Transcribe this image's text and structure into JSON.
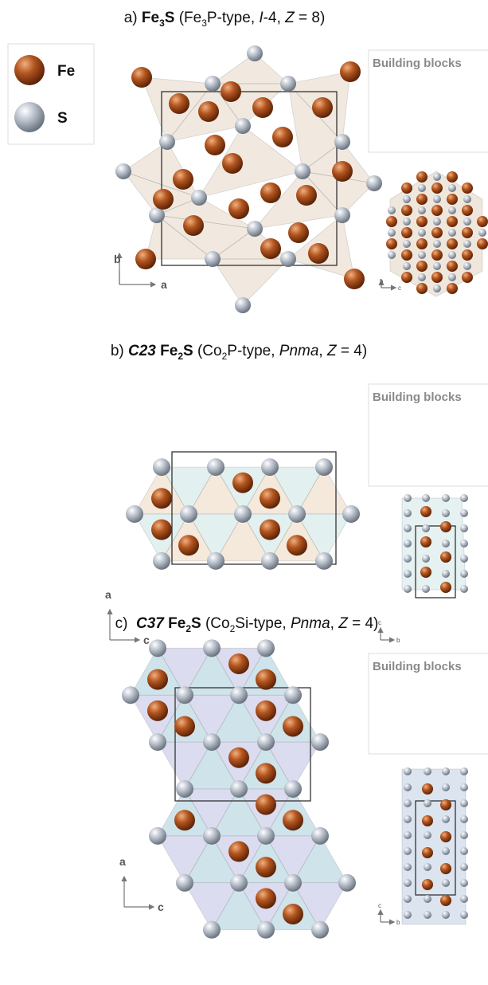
{
  "legend": {
    "items": [
      "Fe",
      "S"
    ]
  },
  "panels": [
    {
      "title": [
        "a) ",
        "Fe",
        "3",
        "S",
        " (Fe",
        "3",
        "P-type, ",
        "I",
        "-4, ",
        "Z",
        " = 8)"
      ],
      "building_blocks": "Building blocks",
      "main_axes": [
        "b",
        "a"
      ],
      "side_axes": [
        "b",
        "c"
      ]
    },
    {
      "title": [
        "b) ",
        "C23",
        " Fe",
        "2",
        "S",
        " (Co",
        "2",
        "P-type, ",
        "Pnma",
        ", ",
        "Z",
        " = 4)"
      ],
      "building_blocks": "Building blocks",
      "main_axes": [
        "a",
        "c"
      ],
      "side_axes": [
        "c",
        "b"
      ]
    },
    {
      "title": [
        "c)  ",
        "C37",
        " Fe",
        "2",
        "S",
        " (Co",
        "2",
        "Si-type, ",
        "Pnma",
        ", ",
        "Z",
        " = 4)"
      ],
      "building_blocks": "Building blocks",
      "main_axes": [
        "a",
        "c"
      ],
      "side_axes": [
        "c",
        "b"
      ]
    }
  ]
}
